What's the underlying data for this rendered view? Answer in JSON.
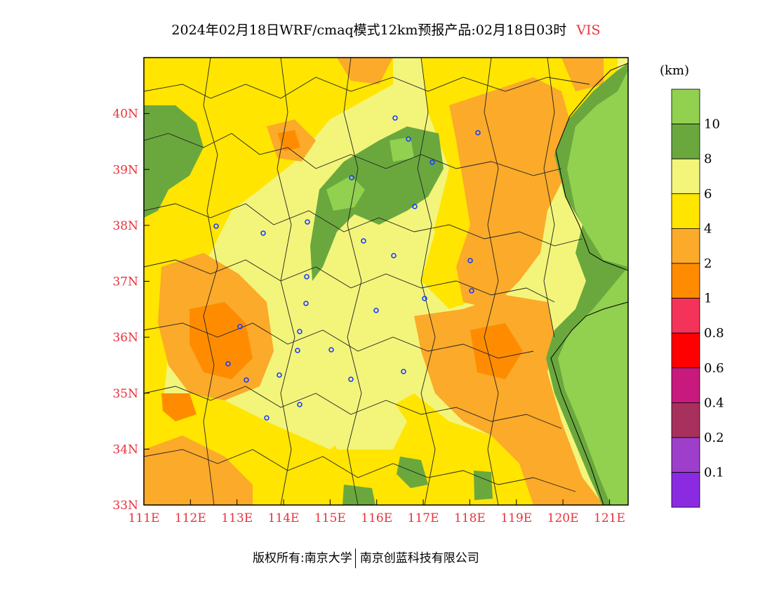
{
  "header": {
    "title": "2024年02月18日WRF/cmaq模式12km预报产品:02月18日03时",
    "variable": "VIS"
  },
  "legend": {
    "unit": "(km)",
    "labels": [
      "10",
      "8",
      "6",
      "4",
      "2",
      "1",
      "0.8",
      "0.6",
      "0.4",
      "0.2",
      "0.1"
    ],
    "colors": [
      "#92d050",
      "#6aa83e",
      "#f2f57a",
      "#ffe500",
      "#fbaa2a",
      "#ff8c00",
      "#f4335a",
      "#ff0000",
      "#c8197f",
      "#a8305c",
      "#9e3fcc",
      "#8a2be2"
    ]
  },
  "axes": {
    "lat_labels": [
      "40N",
      "39N",
      "38N",
      "37N",
      "36N",
      "35N",
      "34N",
      "33N"
    ],
    "lon_labels": [
      "111E",
      "112E",
      "113E",
      "114E",
      "115E",
      "116E",
      "117E",
      "118E",
      "119E",
      "120E",
      "121E"
    ],
    "lat_range": [
      33,
      41
    ],
    "lon_range": [
      111,
      121.4
    ]
  },
  "footer": {
    "copyright": "版权所有:南京大学",
    "company": "南京创蓝科技有限公司"
  }
}
